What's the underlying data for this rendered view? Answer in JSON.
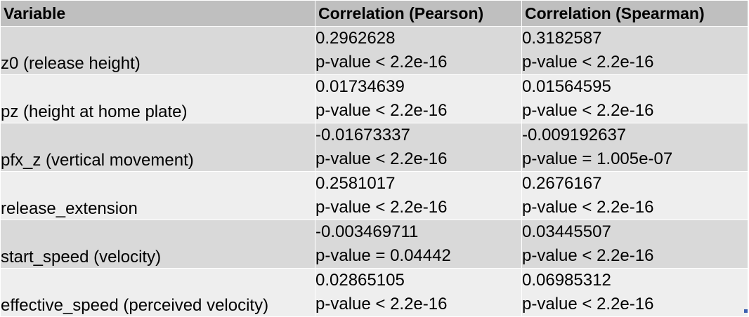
{
  "table": {
    "headers": [
      "Variable",
      "Correlation (Pearson)",
      "Correlation (Spearman)"
    ],
    "rows": [
      {
        "variable": "z0 (release height)",
        "pearson_value": "0.2962628",
        "pearson_p": "p-value < 2.2e-16",
        "spearman_value": "0.3182587",
        "spearman_p": "p-value < 2.2e-16"
      },
      {
        "variable": "pz (height at home plate)",
        "pearson_value": "0.01734639",
        "pearson_p": "p-value < 2.2e-16",
        "spearman_value": "0.01564595",
        "spearman_p": "p-value < 2.2e-16"
      },
      {
        "variable": "pfx_z (vertical movement)",
        "pearson_value": "-0.01673337",
        "pearson_p": "p-value < 2.2e-16",
        "spearman_value": "-0.009192637",
        "spearman_p": "p-value = 1.005e-07"
      },
      {
        "variable": "release_extension",
        "pearson_value": "0.2581017",
        "pearson_p": "p-value < 2.2e-16",
        "spearman_value": "0.2676167",
        "spearman_p": "p-value < 2.2e-16"
      },
      {
        "variable": "start_speed (velocity)",
        "pearson_value": "-0.003469711",
        "pearson_p": "p-value = 0.04442",
        "spearman_value": "0.03445507",
        "spearman_p": "p-value < 2.2e-16"
      },
      {
        "variable": "effective_speed (perceived velocity)",
        "pearson_value": "0.02865105",
        "pearson_p": "p-value < 2.2e-16",
        "spearman_value": "0.06985312",
        "spearman_p": "p-value < 2.2e-16"
      }
    ]
  },
  "colors": {
    "header_bg": "#bfbfbf",
    "row_dark": "#d9d9d9",
    "row_light": "#eeeeee"
  }
}
